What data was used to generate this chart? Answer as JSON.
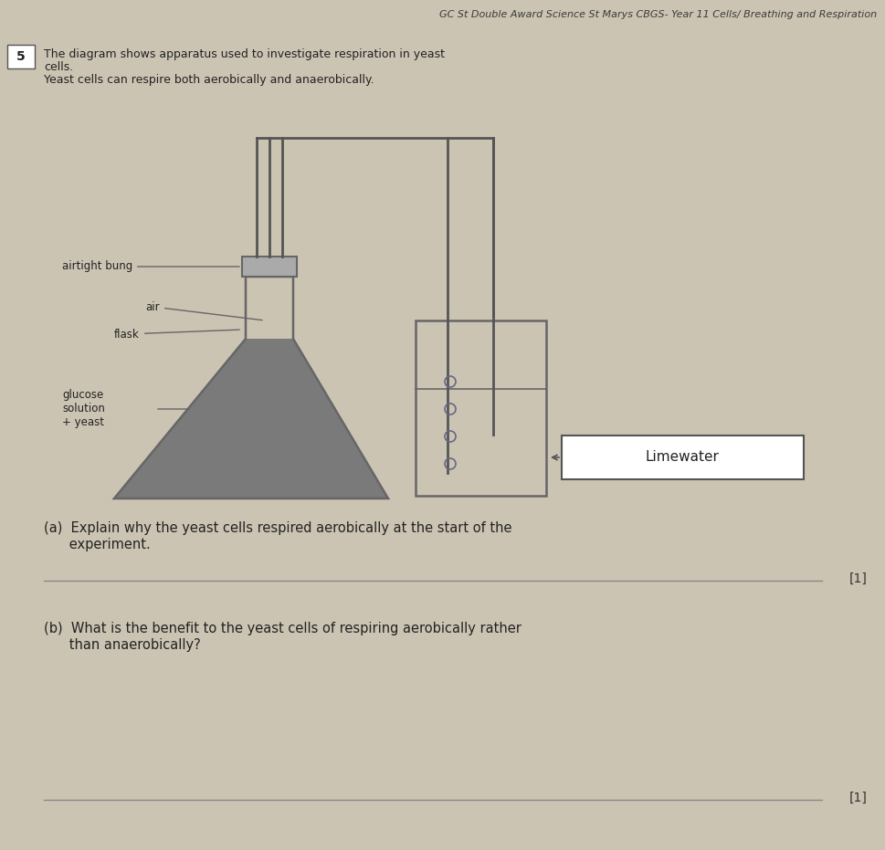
{
  "bg_color": "#ccc4b3",
  "header_text": "GC St Double Award Science St Marys CBGS- Year 11 Cells/ Breathing and Respiration",
  "question_number": "5",
  "intro_line1": "The diagram shows apparatus used to investigate respiration in yeast",
  "intro_line2": "cells.",
  "intro_line3": "Yeast cells can respire both aerobically and anaerobically.",
  "label_airtight_bung": "airtight bung",
  "label_air": "air",
  "label_flask": "flask",
  "label_glucose": "glucose",
  "label_solution": "solution",
  "label_yeast": "+ yeast",
  "label_limewater": "Limewater",
  "question_a_1": "(a)  Explain why the yeast cells respired aerobically at the start of the",
  "question_a_2": "      experiment.",
  "question_b_1": "(b)  What is the benefit to the yeast cells of respiring aerobically rather",
  "question_b_2": "      than anaerobically?",
  "mark_a": "[1]",
  "mark_b": "[1]",
  "flask_fill_color": "#7a7a7a",
  "line_color": "#666666",
  "tube_color": "#555555"
}
